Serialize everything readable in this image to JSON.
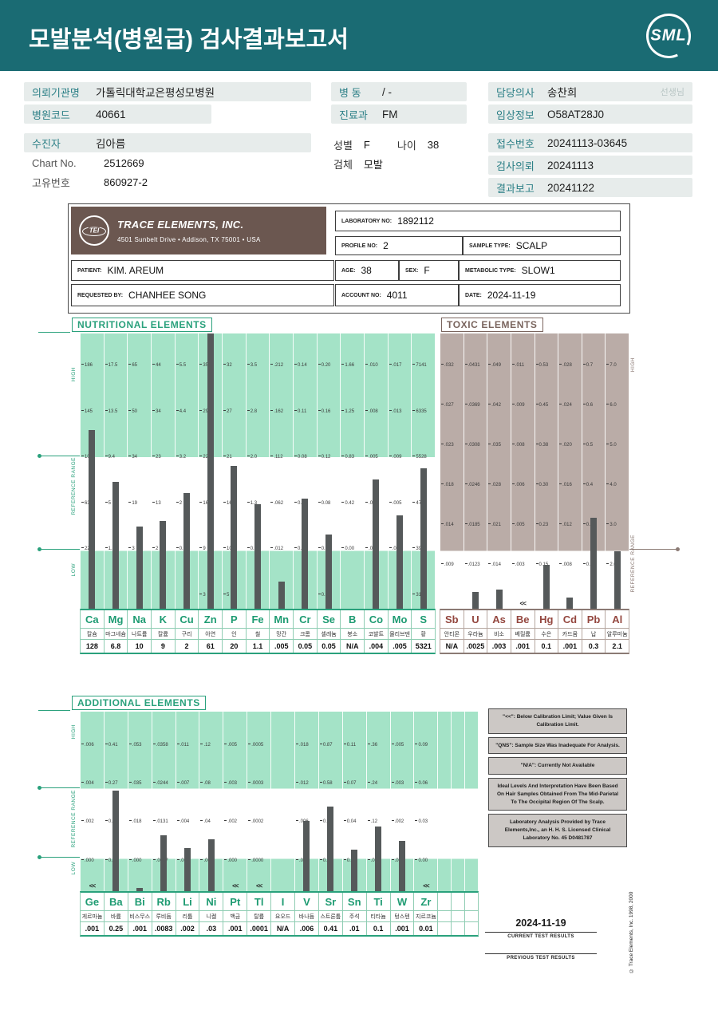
{
  "colors": {
    "header_teal": "#1A6B73",
    "label_teal": "#2B7F86",
    "chip_bg": "#E7ECEB",
    "nutritional_green": "#A4E3C7",
    "accent_green": "#2AA17C",
    "toxic_mauve": "#BAACA7",
    "toxic_brown": "#7A655E",
    "toxic_symbol_red": "#94473F",
    "bar_gray": "#55595A",
    "tei_brown": "#6B5750"
  },
  "header": {
    "title": "모발분석(병원급) 검사결과보고서",
    "logo_text": "SML"
  },
  "info": {
    "org": {
      "label": "의뢰기관명",
      "value": "가톨릭대학교은평성모병원"
    },
    "hospital_code": {
      "label": "병원코드",
      "value": "40661"
    },
    "patient": {
      "label": "수진자",
      "value": "김아름"
    },
    "chart_no": {
      "label": "Chart No.",
      "value": "2512669"
    },
    "unique_no": {
      "label": "고유번호",
      "value": "860927-2"
    },
    "ward": {
      "label": "병  동",
      "value": "/ -"
    },
    "department": {
      "label": "진료과",
      "value": "FM"
    },
    "sex": {
      "label": "성별",
      "value": "F"
    },
    "age": {
      "label": "나이",
      "value": "38"
    },
    "specimen": {
      "label": "검체",
      "value": "모발"
    },
    "doctor": {
      "label": "담당의사",
      "value": "송찬희",
      "suffix": "선생님"
    },
    "clinical_info": {
      "label": "임상정보",
      "value": "O58AT28J0"
    },
    "receipt_no": {
      "label": "접수번호",
      "value": "20241113-03645"
    },
    "request_date": {
      "label": "검사의뢰",
      "value": "20241113"
    },
    "report_date": {
      "label": "결과보고",
      "value": "20241122"
    }
  },
  "lab_box": {
    "company": "TRACE ELEMENTS, INC.",
    "address": "4501 Sunbelt Drive  •  Addison, TX 75001  •  USA",
    "laboratory_no_label": "LABORATORY NO:",
    "laboratory_no": "1892112",
    "profile_no_label": "PROFILE NO:",
    "profile_no": "2",
    "sample_type_label": "SAMPLE TYPE:",
    "sample_type": "SCALP",
    "patient_label": "PATIENT:",
    "patient": "KIM. AREUM",
    "age_label": "AGE:",
    "age": "38",
    "sex_label": "SEX:",
    "sex": "F",
    "metabolic_label": "METABOLIC TYPE:",
    "metabolic": "SLOW1",
    "requested_label": "REQUESTED BY:",
    "requested": "CHANHEE SONG",
    "account_label": "ACCOUNT NO:",
    "account": "4011",
    "date_label": "DATE:",
    "date": "2024-11-19"
  },
  "chart_data": [
    {
      "id": "nutritional",
      "type": "bar",
      "title": "NUTRITIONAL ELEMENTS",
      "side_labels": [
        "HIGH",
        "REFERENCE RANGE",
        "LOW"
      ],
      "ref_band_pct": [
        45,
        79
      ],
      "elements": [
        {
          "symbol": "Ca",
          "korean": "칼슘",
          "value": "128",
          "ticks": [
            "186",
            "145",
            "104",
            "63",
            "22"
          ],
          "bar_pct": 65
        },
        {
          "symbol": "Mg",
          "korean": "마그네슘",
          "value": "6.8",
          "ticks": [
            "17.5",
            "13.5",
            "9.4",
            "5",
            "1.3"
          ],
          "bar_pct": 46
        },
        {
          "symbol": "Na",
          "korean": "나트륨",
          "value": "10",
          "ticks": [
            "65",
            "50",
            "34",
            "19",
            "3"
          ],
          "bar_pct": 30
        },
        {
          "symbol": "K",
          "korean": "칼륨",
          "value": "9",
          "ticks": [
            "44",
            "34",
            "23",
            "13",
            "2"
          ],
          "bar_pct": 32
        },
        {
          "symbol": "Cu",
          "korean": "구리",
          "value": "2",
          "ticks": [
            "5.5",
            "4.4",
            "3.2",
            "2",
            "0.9"
          ],
          "bar_pct": 42
        },
        {
          "symbol": "Zn",
          "korean": "아연",
          "value": "61",
          "ticks": [
            "35",
            "29",
            "22",
            "16",
            "9",
            "3"
          ],
          "bar_pct": 100
        },
        {
          "symbol": "P",
          "korean": "인",
          "value": "20",
          "ticks": [
            "32",
            "27",
            "21",
            "16",
            "10",
            "5"
          ],
          "bar_pct": 52
        },
        {
          "symbol": "Fe",
          "korean": "철",
          "value": "1.1",
          "ticks": [
            "3.5",
            "2.8",
            "2.0",
            "1.3",
            "0.62"
          ],
          "bar_pct": 38
        },
        {
          "symbol": "Mn",
          "korean": "망간",
          "value": ".005",
          "ticks": [
            ".212",
            ".162",
            ".112",
            ".062",
            ".012"
          ],
          "bar_pct": 10
        },
        {
          "symbol": "Cr",
          "korean": "크롬",
          "value": "0.05",
          "ticks": [
            "0.14",
            "0.11",
            "0.08",
            "0.05",
            "0.02"
          ],
          "bar_pct": 40
        },
        {
          "symbol": "Se",
          "korean": "셀레늄",
          "value": "0.05",
          "ticks": [
            "0.20",
            "0.16",
            "0.12",
            "0.08",
            "0.04",
            "0.00"
          ],
          "bar_pct": 27
        },
        {
          "symbol": "B",
          "korean": "붕소",
          "value": "N/A",
          "ticks": [
            "1.66",
            "1.25",
            "0.83",
            "0.42",
            "0.00"
          ],
          "bar_pct": 0
        },
        {
          "symbol": "Co",
          "korean": "코발트",
          "value": ".004",
          "ticks": [
            ".010",
            ".008",
            ".005",
            ".003",
            ".000"
          ],
          "bar_pct": 47
        },
        {
          "symbol": "Mo",
          "korean": "몰리브덴",
          "value": ".005",
          "ticks": [
            ".017",
            ".013",
            ".009",
            ".005",
            ".001"
          ],
          "bar_pct": 34
        },
        {
          "symbol": "S",
          "korean": "황",
          "value": "5321",
          "ticks": [
            "7141",
            "6335",
            "5528",
            "4722",
            "3915",
            "3109"
          ],
          "bar_pct": 51
        }
      ]
    },
    {
      "id": "toxic",
      "type": "bar",
      "title": "TOXIC ELEMENTS",
      "side_labels": [
        "HIGH",
        "REFERENCE RANGE"
      ],
      "ref_band_pct": [
        79,
        100
      ],
      "elements": [
        {
          "symbol": "Sb",
          "korean": "안티몬",
          "value": "N/A",
          "ticks": [
            ".032",
            ".027",
            ".023",
            ".018",
            ".014",
            ".009"
          ],
          "bar_pct": 0
        },
        {
          "symbol": "U",
          "korean": "우라늄",
          "value": ".0025",
          "ticks": [
            ".0431",
            ".0369",
            ".0308",
            ".0246",
            ".0185",
            ".0123"
          ],
          "bar_pct": 6
        },
        {
          "symbol": "As",
          "korean": "비소",
          "value": ".003",
          "ticks": [
            ".049",
            ".042",
            ".035",
            ".028",
            ".021",
            ".014"
          ],
          "bar_pct": 7
        },
        {
          "symbol": "Be",
          "korean": "베릴륨",
          "value": ".001",
          "ticks": [
            ".011",
            ".009",
            ".008",
            ".006",
            ".005",
            ".003"
          ],
          "bar_pct": 0,
          "marker": "<<"
        },
        {
          "symbol": "Hg",
          "korean": "수은",
          "value": "0.1",
          "ticks": [
            "0.53",
            "0.45",
            "0.38",
            "0.30",
            "0.23",
            "0.15"
          ],
          "bar_pct": 16
        },
        {
          "symbol": "Cd",
          "korean": "카드뮴",
          "value": ".001",
          "ticks": [
            ".028",
            ".024",
            ".020",
            ".016",
            ".012",
            ".008"
          ],
          "bar_pct": 4
        },
        {
          "symbol": "Pb",
          "korean": "납",
          "value": "0.3",
          "ticks": [
            "0.7",
            "0.6",
            "0.5",
            "0.4",
            "0.3",
            "0.2"
          ],
          "bar_pct": 33
        },
        {
          "symbol": "Al",
          "korean": "알루미늄",
          "value": "2.1",
          "ticks": [
            "7.0",
            "6.0",
            "5.0",
            "4.0",
            "3.0",
            "2.0"
          ],
          "bar_pct": 21
        }
      ]
    },
    {
      "id": "additional",
      "type": "bar",
      "title": "ADDITIONAL ELEMENTS",
      "side_labels": [
        "HIGH",
        "REFERENCE RANGE",
        "LOW"
      ],
      "ref_band_pct": [
        43,
        82
      ],
      "elements": [
        {
          "symbol": "Ge",
          "korean": "게르마늄",
          "value": ".001",
          "ticks": [
            ".006",
            ".004",
            ".002",
            ".000"
          ],
          "bar_pct": 0,
          "marker": "<<"
        },
        {
          "symbol": "Ba",
          "korean": "바륨",
          "value": "0.25",
          "ticks": [
            "0.41",
            "0.27",
            "0.14",
            "0.00"
          ],
          "bar_pct": 56
        },
        {
          "symbol": "Bi",
          "korean": "비스무스",
          "value": ".001",
          "ticks": [
            ".053",
            ".035",
            ".018",
            ".000"
          ],
          "bar_pct": 2
        },
        {
          "symbol": "Rb",
          "korean": "루비듐",
          "value": ".0083",
          "ticks": [
            ".0358",
            ".0244",
            ".0131",
            ".0017"
          ],
          "bar_pct": 31
        },
        {
          "symbol": "Li",
          "korean": "리튬",
          "value": ".002",
          "ticks": [
            ".011",
            ".007",
            ".004",
            ".000"
          ],
          "bar_pct": 24
        },
        {
          "symbol": "Ni",
          "korean": "니켈",
          "value": ".03",
          "ticks": [
            ".12",
            ".08",
            ".04",
            ".00"
          ],
          "bar_pct": 29
        },
        {
          "symbol": "Pt",
          "korean": "백금",
          "value": ".001",
          "ticks": [
            ".005",
            ".003",
            ".002",
            ".000"
          ],
          "bar_pct": 0,
          "marker": "<<"
        },
        {
          "symbol": "Tl",
          "korean": "탈륨",
          "value": ".0001",
          "ticks": [
            ".0005",
            ".0003",
            ".0002",
            ".0000"
          ],
          "bar_pct": 0,
          "marker": "<<"
        },
        {
          "symbol": "I",
          "korean": "요오드",
          "value": "N/A",
          "ticks": [
            "",
            "",
            "",
            ""
          ],
          "bar_pct": 0
        },
        {
          "symbol": "V",
          "korean": "바나듐",
          "value": ".006",
          "ticks": [
            ".018",
            ".012",
            ".006",
            ".000"
          ],
          "bar_pct": 39
        },
        {
          "symbol": "Sr",
          "korean": "스트론튬",
          "value": "0.41",
          "ticks": [
            "0.87",
            "0.58",
            "0.30",
            "0.00"
          ],
          "bar_pct": 47
        },
        {
          "symbol": "Sn",
          "korean": "주석",
          "value": ".01",
          "ticks": [
            "0.11",
            "0.07",
            "0.04",
            "0.00"
          ],
          "bar_pct": 23
        },
        {
          "symbol": "Ti",
          "korean": "티타늄",
          "value": "0.1",
          "ticks": [
            ".36",
            ".24",
            ".12",
            ".00"
          ],
          "bar_pct": 36
        },
        {
          "symbol": "W",
          "korean": "텅스텐",
          "value": ".001",
          "ticks": [
            ".005",
            ".003",
            ".002",
            ".000"
          ],
          "bar_pct": 28
        },
        {
          "symbol": "Zr",
          "korean": "지르코늄",
          "value": "0.01",
          "ticks": [
            "0.09",
            "0.06",
            "0.03",
            "0.00"
          ],
          "bar_pct": 0,
          "marker": "<<"
        },
        {
          "symbol": "",
          "korean": "",
          "value": "",
          "ticks": [],
          "bar_pct": 0,
          "empty": true
        },
        {
          "symbol": "",
          "korean": "",
          "value": "",
          "ticks": [],
          "bar_pct": 0,
          "empty": true
        },
        {
          "symbol": "",
          "korean": "",
          "value": "",
          "ticks": [],
          "bar_pct": 0,
          "empty": true
        }
      ]
    }
  ],
  "notes": [
    "\"<<\": Below Calibration Limit; Value Given Is Calibration Limit.",
    "\"QNS\": Sample Size Was Inadequate For Analysis.",
    "\"N/A\": Currently Not Available",
    "Ideal Levels And Interpretation Have Been Based On Hair Samples Obtained From The Mid-Parietal To The Occipital Region Of The Scalp.",
    "Laboratory Analysis Provided by Trace Elements,Inc., an H. H. S. Licensed Clinical Laboratory No. 45 D0481787"
  ],
  "footer": {
    "date": "2024-11-19",
    "current_label": "CURRENT TEST RESULTS",
    "previous_label": "PREVIOUS TEST RESULTS",
    "copyright": "© Trace Elements, Inc. 1998, 2000"
  }
}
